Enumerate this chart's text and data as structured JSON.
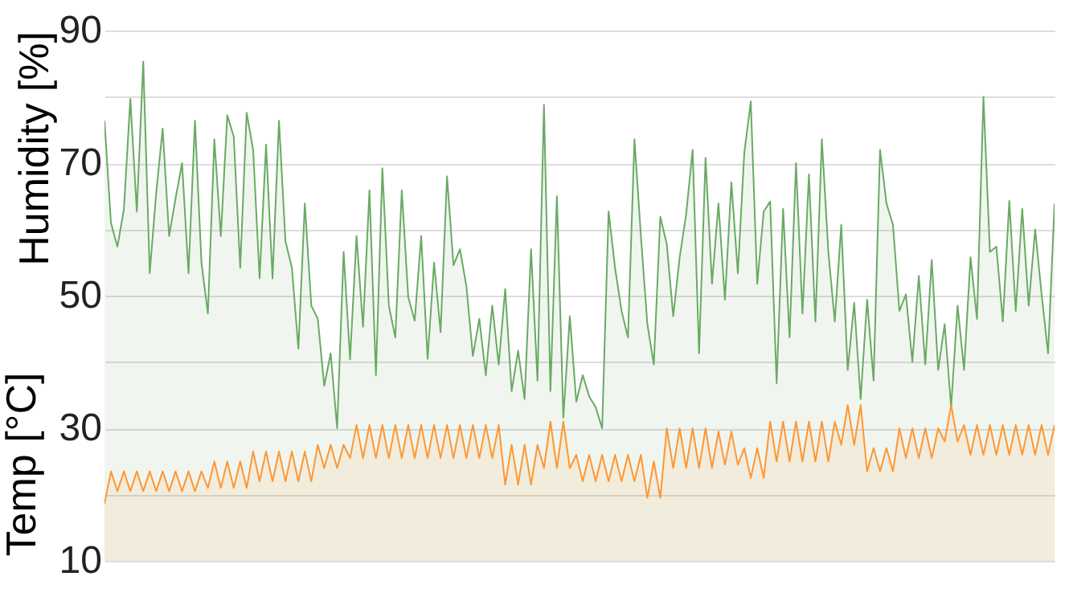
{
  "chart_data": {
    "type": "area",
    "ylabel": "Humidity [%]",
    "annotations": [
      "Temp [°C]"
    ],
    "ylim": [
      10,
      90
    ],
    "yticks": [
      10,
      {
        "value": 20,
        "label": null
      },
      30,
      {
        "value": 40,
        "label": null
      },
      50,
      {
        "value": 60,
        "label": null
      },
      70,
      {
        "value": 80,
        "label": null
      },
      90
    ],
    "grid": "y",
    "categories": [
      null,
      null,
      null,
      null,
      null,
      null,
      null,
      null,
      null,
      null,
      null,
      null,
      null,
      null,
      null,
      null,
      null,
      null,
      null,
      null,
      null,
      null,
      null,
      null,
      null,
      null,
      null,
      null,
      null,
      null,
      null,
      null,
      null,
      null,
      null,
      null,
      null,
      null,
      null,
      null,
      null,
      null,
      null,
      null,
      null,
      null,
      null,
      null,
      null,
      null,
      null,
      null,
      null,
      null,
      null,
      null,
      null,
      null,
      null,
      null,
      null,
      null,
      null,
      null,
      null,
      null,
      null,
      null,
      null,
      null,
      null,
      null,
      null,
      null,
      null,
      null,
      null,
      null,
      null,
      null,
      null,
      null,
      null,
      null,
      null,
      null,
      null,
      null,
      null,
      null,
      null,
      null,
      null,
      null,
      null,
      null,
      null,
      null,
      null,
      null,
      null,
      null,
      null,
      null,
      null,
      null,
      null,
      null,
      null,
      null,
      null,
      null,
      null,
      null,
      null,
      null,
      null,
      null,
      null,
      null,
      null,
      null,
      null,
      null,
      null,
      null,
      null,
      null,
      null,
      null,
      null,
      null,
      null,
      null,
      null,
      null,
      null,
      null,
      null,
      null,
      null,
      null,
      null,
      null,
      null,
      null,
      null,
      null
    ],
    "series": [
      {
        "color": "#6aaa64",
        "values": [
          76.4,
          61,
          57.4,
          63,
          79.7,
          62.7,
          85.3,
          53.4,
          65.5,
          75.2,
          59,
          64.7,
          70,
          53.4,
          76.4,
          55,
          47.3,
          73.6,
          59,
          77.2,
          74,
          54.2,
          77.6,
          72,
          52.6,
          72.8,
          52.6,
          76.4,
          58.2,
          54.2,
          42,
          63.9,
          48.5,
          46.5,
          36.4,
          41.3,
          30,
          56.6,
          40.4,
          59,
          45.3,
          65.9,
          38,
          69.2,
          48.5,
          43.7,
          65.9,
          49.8,
          46.2,
          59,
          40.5,
          55,
          44.5,
          68,
          54.6,
          57,
          51.4,
          40.9,
          46.5,
          38,
          48.5,
          39.6,
          51,
          35.6,
          41.7,
          34.4,
          57,
          37.2,
          78.8,
          35.6,
          65,
          31.6,
          46.9,
          34,
          38,
          34.8,
          33.2,
          30,
          62.7,
          54.2,
          47.7,
          43.7,
          73.6,
          59,
          45.7,
          39.6,
          61.9,
          57.8,
          46.9,
          55.8,
          62.3,
          72,
          41.3,
          70.8,
          51.8,
          63.9,
          49.4,
          67.1,
          53.4,
          71.6,
          79.3,
          51.8,
          62.7,
          64.2,
          36.8,
          63.1,
          43.7,
          70,
          47.3,
          68.3,
          46.1,
          73.6,
          56.6,
          46.1,
          60.7,
          38.8,
          48.9,
          34.4,
          49.4,
          37.2,
          72,
          63.9,
          60.7,
          47.7,
          50.2,
          40,
          53,
          39.6,
          55.4,
          38.8,
          45.7,
          33.2,
          48.5,
          38.8,
          55.8,
          46.5,
          80,
          56.6,
          57.4,
          46.1,
          64.3,
          47.7,
          63.1,
          48.5,
          60,
          50.2,
          41.3,
          63.9
        ]
      },
      {
        "color": "#ff9633",
        "values": [
          18.6,
          23.5,
          20.5,
          23.5,
          20.5,
          23.5,
          20.5,
          23.5,
          20.5,
          23.5,
          20.5,
          23.5,
          20.5,
          23.5,
          20.5,
          23.5,
          21,
          25,
          21,
          25,
          21,
          25,
          21,
          26.5,
          22,
          26.5,
          22,
          26.5,
          22,
          26.5,
          22,
          26.5,
          22,
          27.5,
          24,
          27.5,
          24,
          27.5,
          25.5,
          30.5,
          25.5,
          30.5,
          25.5,
          30.5,
          25.5,
          30.5,
          25.5,
          30.5,
          25.5,
          30.5,
          25.5,
          30.5,
          25.5,
          30.5,
          25.5,
          30.5,
          25.5,
          30.5,
          25.5,
          30.5,
          25.5,
          30.5,
          21.5,
          27.5,
          21.5,
          27.5,
          21.5,
          27.5,
          24,
          31,
          24,
          31,
          24,
          26,
          22,
          26,
          22,
          26,
          22,
          26,
          22,
          26,
          22,
          26,
          19.5,
          25,
          19.5,
          30,
          24,
          30,
          24,
          30,
          24,
          30,
          24,
          29.5,
          24.5,
          29.5,
          24.5,
          27,
          22.5,
          27,
          22.5,
          31,
          25,
          31,
          25,
          31,
          25,
          31,
          25,
          31,
          25,
          31,
          27.5,
          33.5,
          27.5,
          33.5,
          23.5,
          27,
          23.5,
          27,
          23.5,
          30,
          25.5,
          30,
          25.5,
          30,
          25.5,
          30,
          28,
          33.5,
          28,
          30.5,
          26,
          30.5,
          26,
          30.5,
          26,
          30.5,
          26,
          30.5,
          26,
          30.5,
          26,
          30.5,
          26,
          30.5
        ]
      }
    ]
  }
}
